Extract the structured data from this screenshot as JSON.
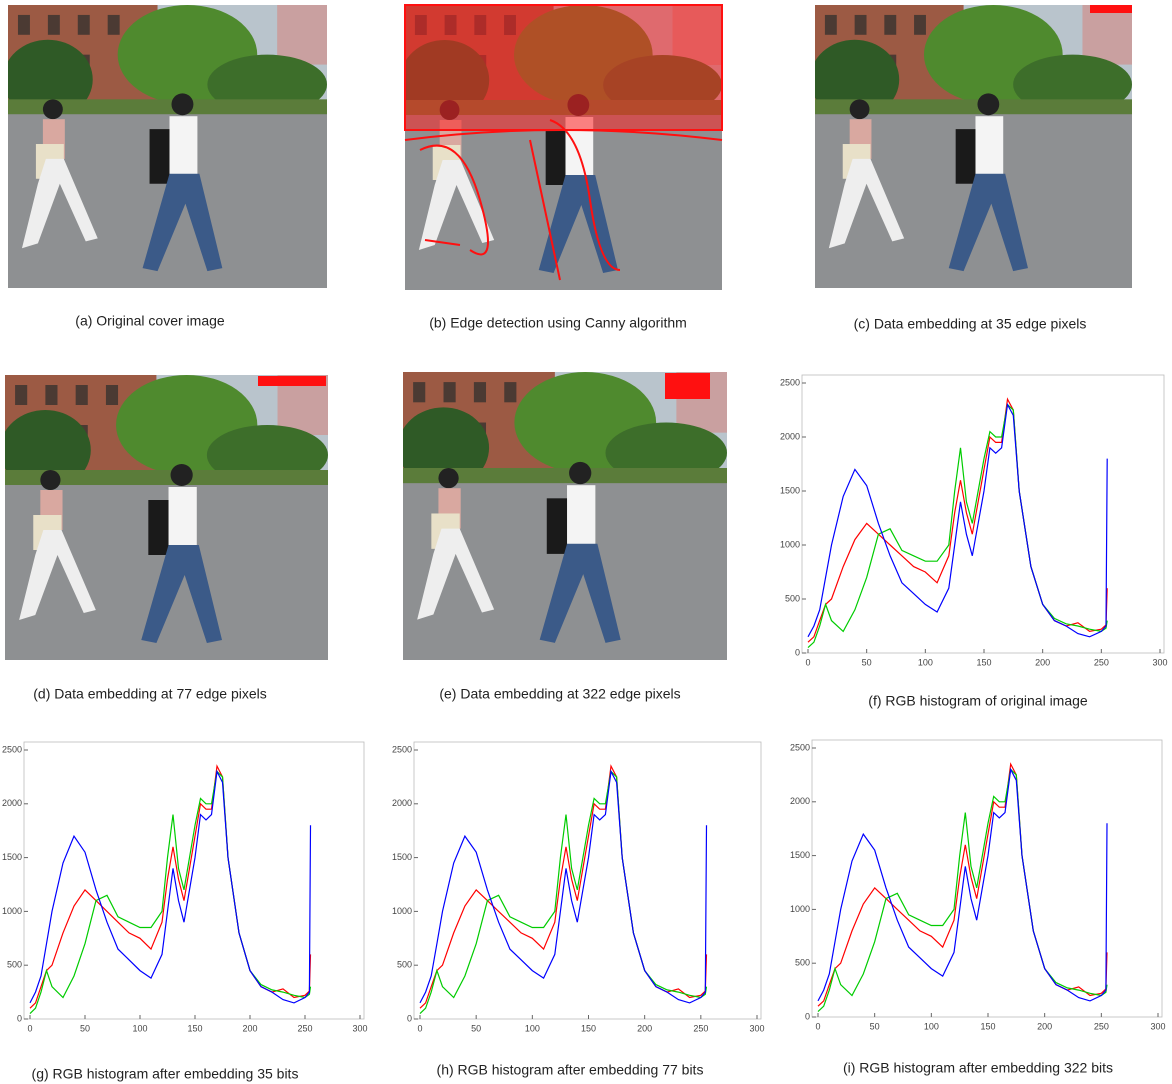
{
  "panels": [
    {
      "caption": "(a) Original cover image"
    },
    {
      "caption": "(b) Edge detection using Canny algorithm"
    },
    {
      "caption": "(c) Data embedding at 35 edge pixels"
    },
    {
      "caption": "(d) Data embedding at 77 edge pixels"
    },
    {
      "caption": "(e) Data embedding at 322 edge pixels"
    }
  ],
  "chart_data": [
    {
      "type": "line",
      "caption": "(f) RGB histogram of original image",
      "x": [
        0,
        5,
        10,
        15,
        20,
        30,
        40,
        50,
        60,
        70,
        80,
        90,
        100,
        110,
        120,
        125,
        130,
        135,
        140,
        150,
        155,
        160,
        165,
        170,
        175,
        180,
        190,
        200,
        210,
        220,
        230,
        240,
        250,
        254,
        255
      ],
      "series": [
        {
          "color": "#ff0000",
          "values": [
            100,
            150,
            300,
            450,
            500,
            800,
            1050,
            1200,
            1100,
            1000,
            900,
            800,
            750,
            650,
            900,
            1300,
            1600,
            1300,
            1100,
            1700,
            2000,
            1950,
            1950,
            2350,
            2250,
            1500,
            800,
            450,
            300,
            250,
            280,
            200,
            220,
            260,
            600
          ]
        },
        {
          "color": "#00cc00",
          "values": [
            50,
            100,
            250,
            450,
            300,
            200,
            400,
            700,
            1100,
            1150,
            950,
            900,
            850,
            850,
            1000,
            1500,
            1900,
            1400,
            1200,
            1800,
            2050,
            2000,
            2000,
            2300,
            2250,
            1500,
            800,
            450,
            320,
            270,
            250,
            220,
            200,
            230,
            300
          ]
        },
        {
          "color": "#0000ff",
          "values": [
            150,
            250,
            400,
            700,
            1000,
            1450,
            1700,
            1550,
            1200,
            900,
            650,
            550,
            450,
            380,
            600,
            1000,
            1400,
            1100,
            900,
            1500,
            1900,
            1850,
            1900,
            2300,
            2200,
            1500,
            800,
            450,
            300,
            250,
            180,
            150,
            200,
            250,
            1800
          ]
        }
      ],
      "xlim": [
        0,
        300
      ],
      "xticks": [
        0,
        50,
        100,
        150,
        200,
        250,
        300
      ],
      "ylim": [
        0,
        2500
      ],
      "yticks": [
        0,
        500,
        1000,
        1500,
        2000,
        2500
      ]
    },
    {
      "type": "line",
      "caption": "(g) RGB histogram after embedding 35 bits",
      "x": [
        0,
        5,
        10,
        15,
        20,
        30,
        40,
        50,
        60,
        70,
        80,
        90,
        100,
        110,
        120,
        125,
        130,
        135,
        140,
        150,
        155,
        160,
        165,
        170,
        175,
        180,
        190,
        200,
        210,
        220,
        230,
        240,
        250,
        254,
        255
      ],
      "series": [
        {
          "color": "#ff0000",
          "values": [
            100,
            150,
            300,
            450,
            500,
            800,
            1050,
            1200,
            1100,
            1000,
            900,
            800,
            750,
            650,
            900,
            1300,
            1600,
            1300,
            1100,
            1700,
            2000,
            1950,
            1950,
            2350,
            2250,
            1500,
            800,
            450,
            300,
            250,
            280,
            200,
            220,
            260,
            600
          ]
        },
        {
          "color": "#00cc00",
          "values": [
            50,
            100,
            250,
            450,
            300,
            200,
            400,
            700,
            1100,
            1150,
            950,
            900,
            850,
            850,
            1000,
            1500,
            1900,
            1400,
            1200,
            1800,
            2050,
            2000,
            2000,
            2300,
            2250,
            1500,
            800,
            450,
            320,
            270,
            250,
            220,
            200,
            230,
            300
          ]
        },
        {
          "color": "#0000ff",
          "values": [
            150,
            250,
            400,
            700,
            1000,
            1450,
            1700,
            1550,
            1200,
            900,
            650,
            550,
            450,
            380,
            600,
            1000,
            1400,
            1100,
            900,
            1500,
            1900,
            1850,
            1900,
            2300,
            2200,
            1500,
            800,
            450,
            300,
            250,
            180,
            150,
            200,
            250,
            1800
          ]
        }
      ],
      "xlim": [
        0,
        300
      ],
      "xticks": [
        0,
        50,
        100,
        150,
        200,
        250,
        300
      ],
      "ylim": [
        0,
        2500
      ],
      "yticks": [
        0,
        500,
        1000,
        1500,
        2000,
        2500
      ]
    },
    {
      "type": "line",
      "caption": "(h) RGB histogram after embedding 77 bits",
      "x": [
        0,
        5,
        10,
        15,
        20,
        30,
        40,
        50,
        60,
        70,
        80,
        90,
        100,
        110,
        120,
        125,
        130,
        135,
        140,
        150,
        155,
        160,
        165,
        170,
        175,
        180,
        190,
        200,
        210,
        220,
        230,
        240,
        250,
        254,
        255
      ],
      "series": [
        {
          "color": "#ff0000",
          "values": [
            100,
            150,
            300,
            450,
            500,
            800,
            1050,
            1200,
            1100,
            1000,
            900,
            800,
            750,
            650,
            900,
            1300,
            1600,
            1300,
            1100,
            1700,
            2000,
            1950,
            1950,
            2350,
            2250,
            1500,
            800,
            450,
            300,
            250,
            280,
            200,
            220,
            260,
            600
          ]
        },
        {
          "color": "#00cc00",
          "values": [
            50,
            100,
            250,
            450,
            300,
            200,
            400,
            700,
            1100,
            1150,
            950,
            900,
            850,
            850,
            1000,
            1500,
            1900,
            1400,
            1200,
            1800,
            2050,
            2000,
            2000,
            2300,
            2250,
            1500,
            800,
            450,
            320,
            270,
            250,
            220,
            200,
            230,
            300
          ]
        },
        {
          "color": "#0000ff",
          "values": [
            150,
            250,
            400,
            700,
            1000,
            1450,
            1700,
            1550,
            1200,
            900,
            650,
            550,
            450,
            380,
            600,
            1000,
            1400,
            1100,
            900,
            1500,
            1900,
            1850,
            1900,
            2300,
            2200,
            1500,
            800,
            450,
            300,
            250,
            180,
            150,
            200,
            250,
            1800
          ]
        }
      ],
      "xlim": [
        0,
        300
      ],
      "xticks": [
        0,
        50,
        100,
        150,
        200,
        250,
        300
      ],
      "ylim": [
        0,
        2500
      ],
      "yticks": [
        0,
        500,
        1000,
        1500,
        2000,
        2500
      ]
    },
    {
      "type": "line",
      "caption": "(i) RGB histogram after embedding 322 bits",
      "x": [
        0,
        5,
        10,
        15,
        20,
        30,
        40,
        50,
        60,
        70,
        80,
        90,
        100,
        110,
        120,
        125,
        130,
        135,
        140,
        150,
        155,
        160,
        165,
        170,
        175,
        180,
        190,
        200,
        210,
        220,
        230,
        240,
        250,
        254,
        255
      ],
      "series": [
        {
          "color": "#ff0000",
          "values": [
            100,
            150,
            300,
            450,
            500,
            800,
            1050,
            1200,
            1100,
            1000,
            900,
            800,
            750,
            650,
            900,
            1300,
            1600,
            1300,
            1100,
            1700,
            2000,
            1950,
            1950,
            2350,
            2250,
            1500,
            800,
            450,
            300,
            250,
            280,
            200,
            220,
            260,
            600
          ]
        },
        {
          "color": "#00cc00",
          "values": [
            50,
            100,
            250,
            450,
            300,
            200,
            400,
            700,
            1100,
            1150,
            950,
            900,
            850,
            850,
            1000,
            1500,
            1900,
            1400,
            1200,
            1800,
            2050,
            2000,
            2000,
            2300,
            2250,
            1500,
            800,
            450,
            320,
            270,
            250,
            220,
            200,
            230,
            300
          ]
        },
        {
          "color": "#0000ff",
          "values": [
            150,
            250,
            400,
            700,
            1000,
            1450,
            1700,
            1550,
            1200,
            900,
            650,
            550,
            450,
            380,
            600,
            1000,
            1400,
            1100,
            900,
            1500,
            1900,
            1850,
            1900,
            2300,
            2200,
            1500,
            800,
            450,
            300,
            250,
            180,
            150,
            200,
            250,
            1800
          ]
        }
      ],
      "xlim": [
        0,
        300
      ],
      "xticks": [
        0,
        50,
        100,
        150,
        200,
        250,
        300
      ],
      "ylim": [
        0,
        2500
      ],
      "yticks": [
        0,
        500,
        1000,
        1500,
        2000,
        2500
      ]
    }
  ]
}
